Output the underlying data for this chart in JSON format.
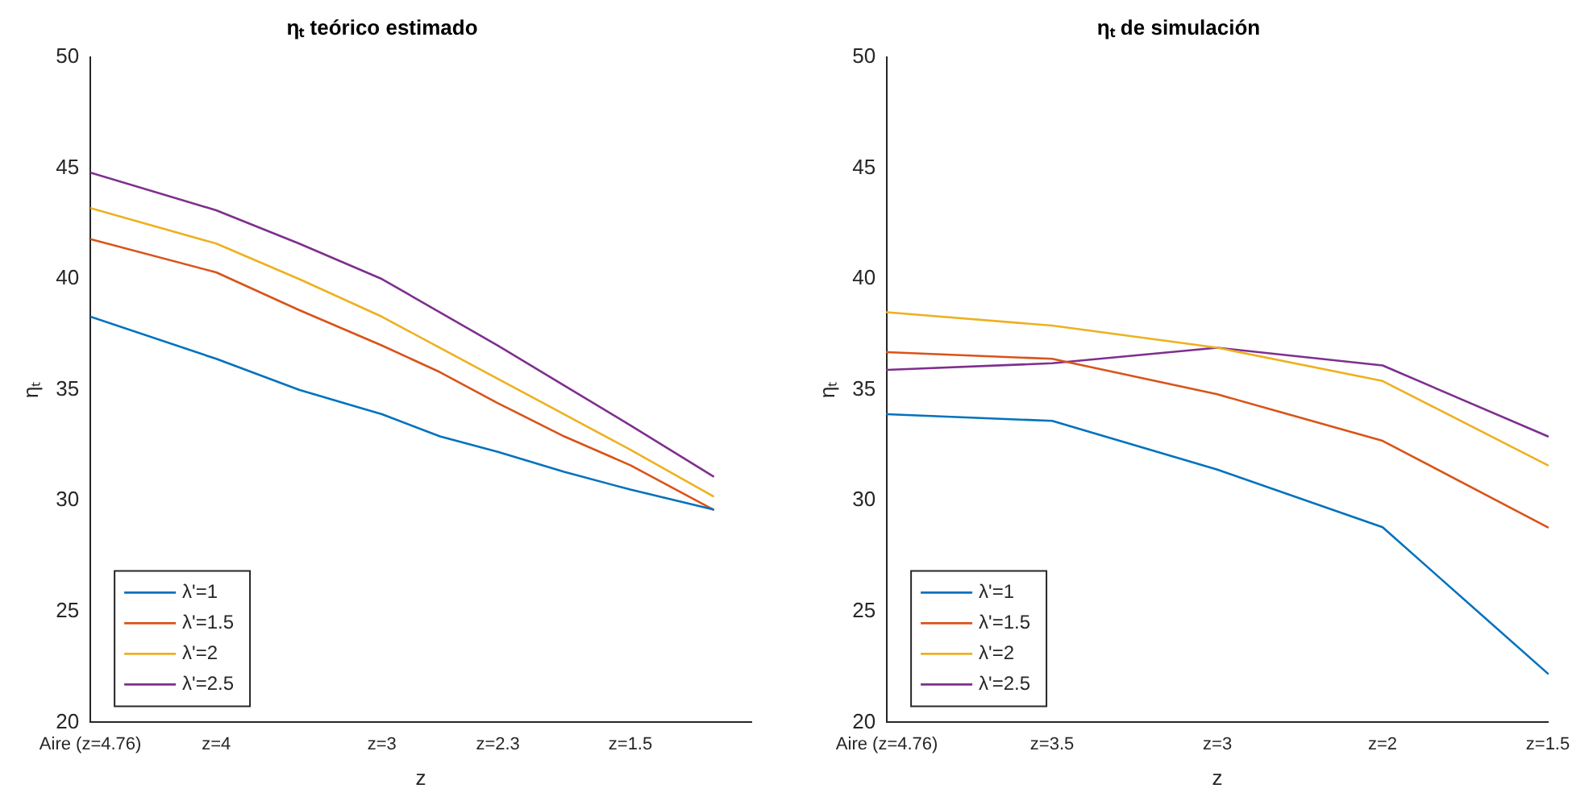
{
  "chart_data": [
    {
      "type": "line",
      "title": "ηₜ teórico estimado",
      "xlabel": "z",
      "ylabel": "ηₜ",
      "x": [
        4.76,
        4,
        3.5,
        3,
        2.65,
        2.3,
        1.9,
        1.5,
        1.0
      ],
      "xlim": [
        4.76,
        0.77
      ],
      "xticks": [
        {
          "value": 4.76,
          "label": "Aire (z=4.76)"
        },
        {
          "value": 4,
          "label": "z=4"
        },
        {
          "value": 3,
          "label": "z=3"
        },
        {
          "value": 2.3,
          "label": "z=2.3"
        },
        {
          "value": 1.5,
          "label": "z=1.5"
        }
      ],
      "ylim": [
        20,
        50
      ],
      "yticks": [
        20,
        25,
        30,
        35,
        40,
        45,
        50
      ],
      "legend": "bottom left",
      "series": [
        {
          "name": "λ'=1",
          "color": "#0072bd",
          "values": [
            38.3,
            36.4,
            35.0,
            33.9,
            32.9,
            32.2,
            31.3,
            30.5,
            29.6
          ]
        },
        {
          "name": "λ'=1.5",
          "color": "#d95319",
          "values": [
            41.8,
            40.3,
            38.6,
            37.0,
            35.8,
            34.4,
            32.9,
            31.6,
            29.6
          ]
        },
        {
          "name": "λ'=2",
          "color": "#edb120",
          "values": [
            43.2,
            41.6,
            40.0,
            38.3,
            36.9,
            35.5,
            33.9,
            32.3,
            30.2
          ]
        },
        {
          "name": "λ'=2.5",
          "color": "#7e2f8e",
          "values": [
            44.8,
            43.1,
            41.6,
            40.0,
            38.5,
            37.0,
            35.2,
            33.4,
            31.1
          ]
        }
      ]
    },
    {
      "type": "line",
      "title": "ηₜ de simulación",
      "xlabel": "z",
      "ylabel": "ηₜ",
      "categories": [
        "Aire (z=4.76)",
        "z=3.5",
        "z=3",
        "z=2",
        "z=1.5"
      ],
      "ylim": [
        20,
        50
      ],
      "yticks": [
        20,
        25,
        30,
        35,
        40,
        45,
        50
      ],
      "legend": "bottom left",
      "series": [
        {
          "name": "λ'=1",
          "color": "#0072bd",
          "values": [
            33.9,
            33.6,
            31.4,
            28.8,
            22.2
          ]
        },
        {
          "name": "λ'=1.5",
          "color": "#d95319",
          "values": [
            36.7,
            36.4,
            34.8,
            32.7,
            28.8
          ]
        },
        {
          "name": "λ'=2",
          "color": "#edb120",
          "values": [
            38.5,
            37.9,
            36.9,
            35.4,
            31.6
          ]
        },
        {
          "name": "λ'=2.5",
          "color": "#7e2f8e",
          "values": [
            35.9,
            36.2,
            36.9,
            36.1,
            32.9
          ]
        }
      ]
    }
  ]
}
